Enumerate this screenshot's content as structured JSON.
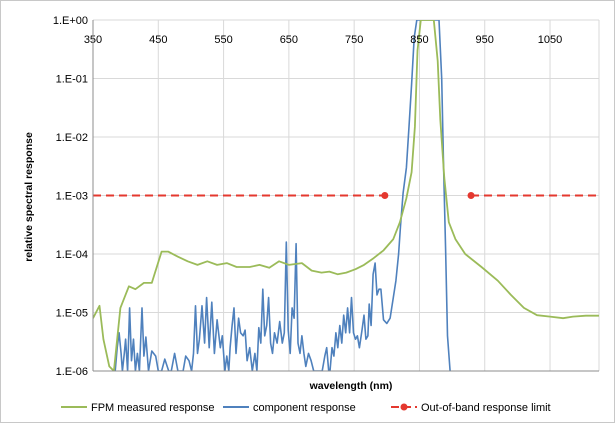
{
  "chart_data": {
    "type": "line",
    "xlabel": "wavelength (nm)",
    "ylabel": "relative spectral response",
    "xlim": [
      350,
      1125
    ],
    "ylim": [
      1e-06,
      1
    ],
    "yscale": "log",
    "x_ticks": [
      350,
      450,
      550,
      650,
      750,
      850,
      950,
      1050
    ],
    "x_tick_labels": [
      "350",
      "450",
      "550",
      "650",
      "750",
      "850",
      "950",
      "1050"
    ],
    "y_ticks": [
      1,
      0.1,
      0.01,
      0.001,
      0.0001,
      1e-05,
      1e-06
    ],
    "y_tick_labels": [
      "1.E+00",
      "1.E-01",
      "1.E-02",
      "1.E-03",
      "1.E-04",
      "1.E-05",
      "1.E-06"
    ],
    "grid": true,
    "legend_position": "bottom",
    "colors": {
      "fpm": "#9bbb59",
      "component": "#4f81bd",
      "limit": "#e4382f",
      "grid": "#d9d9d9"
    },
    "series": [
      {
        "name": "FPM measured response",
        "color": "#9bbb59",
        "points": [
          [
            350,
            8e-06
          ],
          [
            360,
            1.3e-05
          ],
          [
            366,
            3.5e-06
          ],
          [
            375,
            1.2e-06
          ],
          [
            382,
            1e-06
          ],
          [
            392,
            1.2e-05
          ],
          [
            405,
            2.8e-05
          ],
          [
            415,
            2.5e-05
          ],
          [
            428,
            3.2e-05
          ],
          [
            440,
            3.2e-05
          ],
          [
            455,
            0.00011
          ],
          [
            465,
            0.00011
          ],
          [
            480,
            9e-05
          ],
          [
            495,
            7.5e-05
          ],
          [
            510,
            6.5e-05
          ],
          [
            525,
            7.5e-05
          ],
          [
            540,
            6.5e-05
          ],
          [
            555,
            7e-05
          ],
          [
            570,
            6e-05
          ],
          [
            590,
            6e-05
          ],
          [
            605,
            6.5e-05
          ],
          [
            620,
            5.8e-05
          ],
          [
            635,
            7.5e-05
          ],
          [
            650,
            6.5e-05
          ],
          [
            670,
            7e-05
          ],
          [
            685,
            5.2e-05
          ],
          [
            700,
            4.8e-05
          ],
          [
            712,
            5e-05
          ],
          [
            725,
            4.5e-05
          ],
          [
            738,
            4.8e-05
          ],
          [
            752,
            5.5e-05
          ],
          [
            765,
            6.5e-05
          ],
          [
            780,
            8.5e-05
          ],
          [
            795,
            0.000115
          ],
          [
            810,
            0.00018
          ],
          [
            820,
            0.00035
          ],
          [
            830,
            0.0009
          ],
          [
            838,
            0.0025
          ],
          [
            843,
            0.015
          ],
          [
            847,
            0.3
          ],
          [
            852,
            1
          ],
          [
            872,
            1
          ],
          [
            878,
            0.2
          ],
          [
            882,
            0.02
          ],
          [
            888,
            0.002
          ],
          [
            895,
            0.00035
          ],
          [
            905,
            0.00018
          ],
          [
            920,
            0.0001
          ],
          [
            945,
            6e-05
          ],
          [
            970,
            3.5e-05
          ],
          [
            990,
            2e-05
          ],
          [
            1010,
            1.2e-05
          ],
          [
            1030,
            9e-06
          ],
          [
            1050,
            8.5e-06
          ],
          [
            1070,
            8e-06
          ],
          [
            1085,
            8.5e-06
          ],
          [
            1105,
            8.8e-06
          ],
          [
            1125,
            8.8e-06
          ]
        ]
      },
      {
        "name": "component response",
        "color": "#4f81bd",
        "points": [
          [
            384,
            1e-06
          ],
          [
            387,
            2.5e-06
          ],
          [
            390,
            4.5e-06
          ],
          [
            393,
            2e-06
          ],
          [
            395,
            1e-06
          ],
          [
            398,
            2e-06
          ],
          [
            400,
            3.5e-06
          ],
          [
            403,
            1e-06
          ],
          [
            406,
            1.2e-05
          ],
          [
            409,
            1.5e-06
          ],
          [
            412,
            3.5e-06
          ],
          [
            415,
            1e-06
          ],
          [
            418,
            2e-06
          ],
          [
            421,
            1e-06
          ],
          [
            425,
            1.2e-05
          ],
          [
            428,
            1.8e-06
          ],
          [
            431,
            3.8e-06
          ],
          [
            435,
            1e-06
          ],
          [
            440,
            2.2e-06
          ],
          [
            446,
            1.8e-06
          ],
          [
            450,
            1e-06
          ],
          [
            455,
            1e-06
          ],
          [
            460,
            1.6e-06
          ],
          [
            466,
            1e-06
          ],
          [
            470,
            1e-06
          ],
          [
            475,
            2e-06
          ],
          [
            480,
            1e-06
          ],
          [
            488,
            1e-06
          ],
          [
            492,
            1.8e-06
          ],
          [
            497,
            1.5e-06
          ],
          [
            501,
            1e-06
          ],
          [
            504,
            2e-06
          ],
          [
            507,
            1.3e-05
          ],
          [
            510,
            2e-06
          ],
          [
            513,
            3.5e-06
          ],
          [
            517,
            1.3e-05
          ],
          [
            521,
            3e-06
          ],
          [
            524,
            1.8e-05
          ],
          [
            528,
            2.5e-06
          ],
          [
            532,
            1.5e-05
          ],
          [
            536,
            2e-06
          ],
          [
            540,
            7.5e-06
          ],
          [
            545,
            2.5e-06
          ],
          [
            548,
            4e-06
          ],
          [
            552,
            1e-06
          ],
          [
            555,
            1.8e-06
          ],
          [
            558,
            1e-06
          ],
          [
            560,
            2.5e-06
          ],
          [
            563,
            6e-06
          ],
          [
            566,
            1.2e-05
          ],
          [
            569,
            2e-06
          ],
          [
            573,
            8e-06
          ],
          [
            576,
            4.5e-06
          ],
          [
            580,
            4e-06
          ],
          [
            583,
            5e-06
          ],
          [
            586,
            1.5e-06
          ],
          [
            590,
            2.5e-06
          ],
          [
            594,
            1e-06
          ],
          [
            598,
            2e-06
          ],
          [
            601,
            1e-06
          ],
          [
            604,
            5.5e-06
          ],
          [
            607,
            3e-06
          ],
          [
            610,
            2.5e-05
          ],
          [
            613,
            4e-06
          ],
          [
            616,
            6e-06
          ],
          [
            619,
            1.8e-05
          ],
          [
            622,
            3e-06
          ],
          [
            625,
            2e-06
          ],
          [
            628,
            4.5e-06
          ],
          [
            632,
            3e-06
          ],
          [
            636,
            7e-06
          ],
          [
            640,
            3e-06
          ],
          [
            643,
            4.5e-06
          ],
          [
            646,
            0.00016
          ],
          [
            649,
            5e-06
          ],
          [
            652,
            2e-06
          ],
          [
            655,
            1.2e-05
          ],
          [
            658,
            8e-06
          ],
          [
            661,
            0.00015
          ],
          [
            664,
            3e-06
          ],
          [
            667,
            2e-06
          ],
          [
            670,
            4e-06
          ],
          [
            673,
            2e-06
          ],
          [
            676,
            1.2e-06
          ],
          [
            680,
            2e-06
          ],
          [
            684,
            1.5e-06
          ],
          [
            688,
            1e-06
          ],
          [
            691,
            1e-06
          ],
          [
            695,
            1e-06
          ],
          [
            701,
            1e-06
          ],
          [
            705,
            1.8e-06
          ],
          [
            708,
            2.5e-06
          ],
          [
            711,
            1e-06
          ],
          [
            713,
            1e-06
          ],
          [
            716,
            2.5e-06
          ],
          [
            719,
            1.8e-06
          ],
          [
            722,
            4.5e-06
          ],
          [
            725,
            2.5e-06
          ],
          [
            728,
            6e-06
          ],
          [
            731,
            3e-06
          ],
          [
            734,
            9e-06
          ],
          [
            737,
            4.5e-06
          ],
          [
            740,
            1.2e-05
          ],
          [
            743,
            4.5e-06
          ],
          [
            746,
            1.8e-05
          ],
          [
            749,
            4.5e-06
          ],
          [
            752,
            3.5e-06
          ],
          [
            755,
            4e-06
          ],
          [
            758,
            2.5e-06
          ],
          [
            762,
            5e-06
          ],
          [
            765,
            9e-06
          ],
          [
            768,
            3.5e-06
          ],
          [
            771,
            4e-06
          ],
          [
            773,
            1.4e-05
          ],
          [
            776,
            6e-06
          ],
          [
            779,
            4.5e-05
          ],
          [
            782,
            7e-05
          ],
          [
            785,
            2e-05
          ],
          [
            788,
            2.5e-05
          ],
          [
            791,
            2.5e-05
          ],
          [
            795,
            7.5e-06
          ],
          [
            800,
            6.5e-06
          ],
          [
            805,
            8e-06
          ],
          [
            810,
            1.8e-05
          ],
          [
            814,
            3.5e-05
          ],
          [
            818,
            0.0001
          ],
          [
            821,
            0.0003
          ],
          [
            825,
            0.0011
          ],
          [
            830,
            0.003
          ],
          [
            834,
            0.015
          ],
          [
            838,
            0.08
          ],
          [
            842,
            0.5
          ],
          [
            846,
            1
          ],
          [
            880,
            1
          ],
          [
            884,
            0.1
          ],
          [
            887,
            0.003
          ],
          [
            890,
            0.00012
          ],
          [
            893,
            4e-06
          ],
          [
            897,
            1e-06
          ]
        ]
      },
      {
        "name": "Out-of-band response limit",
        "color": "#e4382f",
        "style": "dashed",
        "markers": true,
        "segments": [
          [
            [
              350,
              0.001
            ],
            [
              797,
              0.001
            ]
          ],
          [
            [
              929,
              0.001
            ],
            [
              1125,
              0.001
            ]
          ]
        ]
      }
    ]
  }
}
